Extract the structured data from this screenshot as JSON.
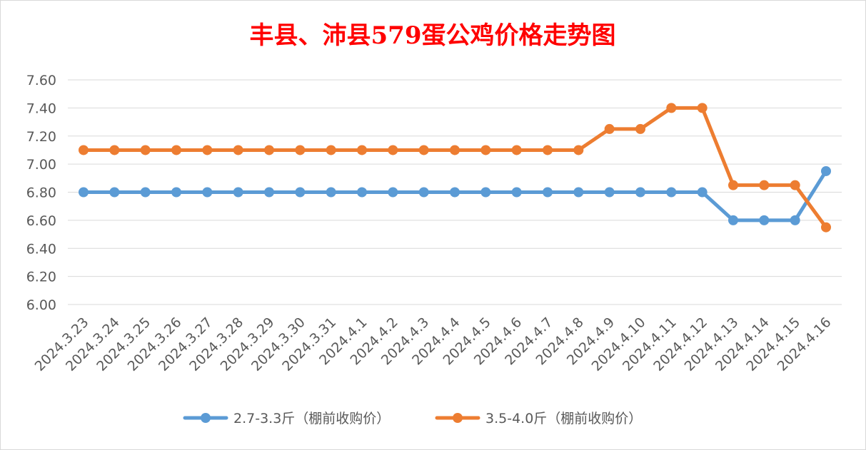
{
  "chart_data": {
    "type": "line",
    "title": "丰县、沛县579蛋公鸡价格走势图",
    "xlabel": "",
    "ylabel": "",
    "ylim": [
      6.0,
      7.6
    ],
    "y_ticks": [
      "6.00",
      "6.20",
      "6.40",
      "6.60",
      "6.80",
      "7.00",
      "7.20",
      "7.40",
      "7.60"
    ],
    "grid": true,
    "legend_position": "bottom",
    "categories": [
      "2024.3.23",
      "2024.3.24",
      "2024.3.25",
      "2024.3.26",
      "2024.3.27",
      "2024.3.28",
      "2024.3.29",
      "2024.3.30",
      "2024.3.31",
      "2024.4.1",
      "2024.4.2",
      "2024.4.3",
      "2024.4.4",
      "2024.4.5",
      "2024.4.6",
      "2024.4.7",
      "2024.4.8",
      "2024.4.9",
      "2024.4.10",
      "2024.4.11",
      "2024.4.12",
      "2024.4.13",
      "2024.4.14",
      "2024.4.15",
      "2024.4.16"
    ],
    "series": [
      {
        "name": "2.7-3.3斤（棚前收购价）",
        "color": "#5b9bd5",
        "values": [
          6.8,
          6.8,
          6.8,
          6.8,
          6.8,
          6.8,
          6.8,
          6.8,
          6.8,
          6.8,
          6.8,
          6.8,
          6.8,
          6.8,
          6.8,
          6.8,
          6.8,
          6.8,
          6.8,
          6.8,
          6.8,
          6.6,
          6.6,
          6.6,
          6.95
        ]
      },
      {
        "name": "3.5-4.0斤（棚前收购价）",
        "color": "#ed7d31",
        "values": [
          7.1,
          7.1,
          7.1,
          7.1,
          7.1,
          7.1,
          7.1,
          7.1,
          7.1,
          7.1,
          7.1,
          7.1,
          7.1,
          7.1,
          7.1,
          7.1,
          7.1,
          7.25,
          7.25,
          7.4,
          7.4,
          6.85,
          6.85,
          6.85,
          6.55
        ]
      }
    ]
  }
}
